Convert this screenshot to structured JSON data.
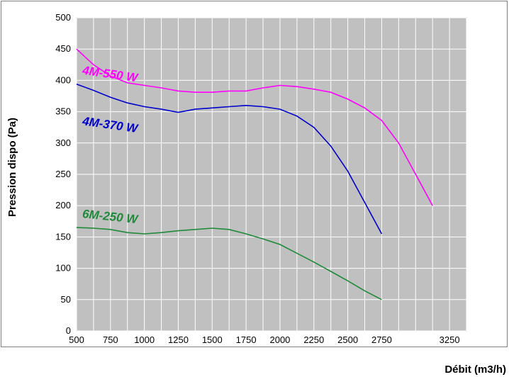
{
  "chart_data": {
    "type": "line",
    "title": "",
    "xlabel": "Débit (m3/h)",
    "ylabel": "Pression dispo (Pa)",
    "xlim": [
      500,
      3375
    ],
    "ylim": [
      0,
      500
    ],
    "x_ticks": [
      500,
      750,
      1000,
      1250,
      1500,
      1750,
      2000,
      2250,
      2500,
      2750,
      3250
    ],
    "y_ticks": [
      0,
      50,
      100,
      150,
      200,
      250,
      300,
      350,
      400,
      450,
      500
    ],
    "grid": true,
    "legend": "none",
    "plot_background": "#c0c0c0",
    "series": [
      {
        "name": "4M-550 W",
        "color": "#ff00ff",
        "label_at": [
          540,
          410
        ],
        "label_rotation": 8,
        "points": [
          [
            500,
            450
          ],
          [
            625,
            425
          ],
          [
            750,
            407
          ],
          [
            875,
            396
          ],
          [
            1000,
            392
          ],
          [
            1125,
            388
          ],
          [
            1250,
            383
          ],
          [
            1375,
            381
          ],
          [
            1500,
            381
          ],
          [
            1625,
            383
          ],
          [
            1750,
            383
          ],
          [
            1875,
            388
          ],
          [
            2000,
            392
          ],
          [
            2125,
            390
          ],
          [
            2250,
            386
          ],
          [
            2375,
            381
          ],
          [
            2500,
            370
          ],
          [
            2625,
            356
          ],
          [
            2750,
            336
          ],
          [
            2875,
            300
          ],
          [
            3000,
            250
          ],
          [
            3125,
            200
          ]
        ]
      },
      {
        "name": "4M-370 W",
        "color": "#0000cc",
        "label_at": [
          540,
          329
        ],
        "label_rotation": 8,
        "points": [
          [
            500,
            394
          ],
          [
            625,
            384
          ],
          [
            750,
            373
          ],
          [
            875,
            364
          ],
          [
            1000,
            358
          ],
          [
            1125,
            354
          ],
          [
            1250,
            349
          ],
          [
            1375,
            354
          ],
          [
            1500,
            356
          ],
          [
            1625,
            358
          ],
          [
            1750,
            360
          ],
          [
            1875,
            358
          ],
          [
            2000,
            354
          ],
          [
            2125,
            343
          ],
          [
            2250,
            325
          ],
          [
            2375,
            295
          ],
          [
            2500,
            255
          ],
          [
            2625,
            205
          ],
          [
            2750,
            155
          ]
        ]
      },
      {
        "name": "6M-250 W",
        "color": "#1f8a3a",
        "label_at": [
          540,
          181
        ],
        "label_rotation": 6,
        "points": [
          [
            500,
            165
          ],
          [
            625,
            164
          ],
          [
            750,
            162
          ],
          [
            875,
            157
          ],
          [
            1000,
            155
          ],
          [
            1125,
            157
          ],
          [
            1250,
            160
          ],
          [
            1375,
            162
          ],
          [
            1500,
            164
          ],
          [
            1625,
            162
          ],
          [
            1750,
            155
          ],
          [
            1875,
            147
          ],
          [
            2000,
            138
          ],
          [
            2125,
            124
          ],
          [
            2250,
            110
          ],
          [
            2375,
            95
          ],
          [
            2500,
            80
          ],
          [
            2625,
            64
          ],
          [
            2750,
            50
          ]
        ]
      }
    ]
  }
}
